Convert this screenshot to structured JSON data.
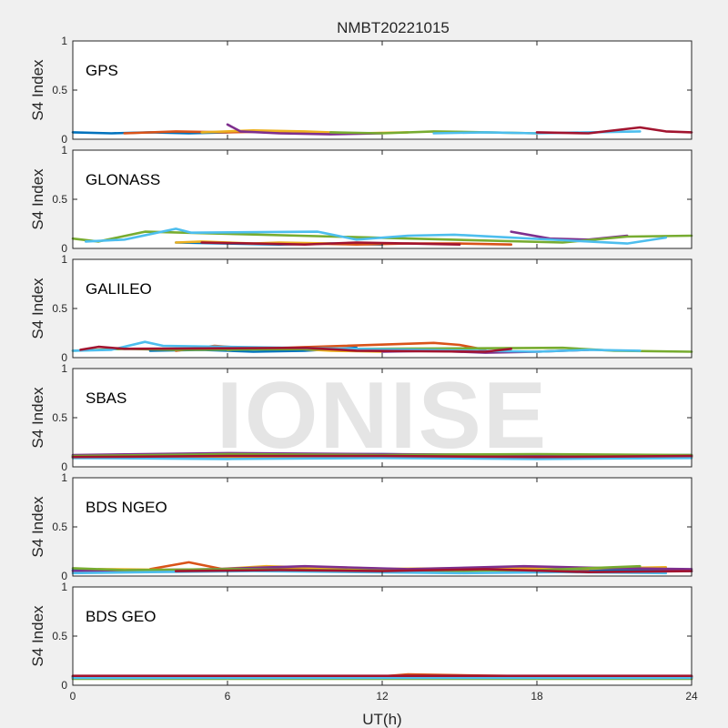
{
  "figure": {
    "title": "NMBT20221015",
    "watermark": "IONISE"
  },
  "chart_data": {
    "type": "line",
    "title": "NMBT20221015",
    "xlabel": "UT(h)",
    "xlim": [
      0,
      24
    ],
    "xticks": [
      "0",
      "6",
      "12",
      "18",
      "24"
    ],
    "ylim": [
      0,
      1
    ],
    "yticks": [
      "0",
      "0.5",
      "1"
    ],
    "series_colors": [
      "#0072BD",
      "#D95319",
      "#EDB120",
      "#7E2F8E",
      "#77AC30",
      "#4DBEEE",
      "#A2142F"
    ],
    "panels": [
      {
        "label": "GPS",
        "ylabel": "S4 Index",
        "series": [
          {
            "x": [
              0,
              1.5,
              3,
              4.5,
              6
            ],
            "y": [
              0.07,
              0.06,
              0.07,
              0.06,
              0.07
            ]
          },
          {
            "x": [
              2,
              4,
              6,
              8,
              10
            ],
            "y": [
              0.06,
              0.08,
              0.07,
              0.08,
              0.06
            ]
          },
          {
            "x": [
              5,
              7,
              9,
              11,
              13
            ],
            "y": [
              0.07,
              0.09,
              0.08,
              0.06,
              0.07
            ]
          },
          {
            "x": [
              6,
              6.5,
              8,
              10,
              12
            ],
            "y": [
              0.15,
              0.08,
              0.06,
              0.05,
              0.06
            ]
          },
          {
            "x": [
              10,
              12,
              14,
              16,
              18
            ],
            "y": [
              0.07,
              0.06,
              0.08,
              0.07,
              0.06
            ]
          },
          {
            "x": [
              14,
              16,
              18,
              20,
              22
            ],
            "y": [
              0.06,
              0.07,
              0.06,
              0.07,
              0.08
            ]
          },
          {
            "x": [
              18,
              20,
              22,
              23,
              24
            ],
            "y": [
              0.07,
              0.06,
              0.12,
              0.08,
              0.07
            ]
          }
        ]
      },
      {
        "label": "GLONASS",
        "ylabel": "S4 Index",
        "series": [
          {
            "x": [
              4,
              6,
              8,
              10,
              12
            ],
            "y": [
              0.06,
              0.05,
              0.04,
              0.05,
              0.04
            ]
          },
          {
            "x": [
              9,
              11,
              13,
              15,
              17
            ],
            "y": [
              0.05,
              0.04,
              0.05,
              0.05,
              0.04
            ]
          },
          {
            "x": [
              4,
              5,
              7,
              8,
              10
            ],
            "y": [
              0.06,
              0.07,
              0.05,
              0.06,
              0.05
            ]
          },
          {
            "x": [
              17,
              18.5,
              20,
              21.5
            ],
            "y": [
              0.17,
              0.1,
              0.09,
              0.13
            ]
          },
          {
            "x": [
              0,
              1,
              2.8,
              19,
              21.5,
              24
            ],
            "y": [
              0.1,
              0.07,
              0.17,
              0.06,
              0.12,
              0.13
            ]
          },
          {
            "x": [
              0.5,
              2,
              4,
              4.6,
              9.5,
              11,
              13,
              14.8,
              21.5,
              23
            ],
            "y": [
              0.07,
              0.09,
              0.2,
              0.16,
              0.17,
              0.09,
              0.13,
              0.14,
              0.05,
              0.11
            ]
          },
          {
            "x": [
              5,
              7,
              9,
              11,
              13,
              15
            ],
            "y": [
              0.06,
              0.05,
              0.04,
              0.06,
              0.05,
              0.04
            ]
          }
        ]
      },
      {
        "label": "GALILEO",
        "ylabel": "S4 Index",
        "series": [
          {
            "x": [
              3,
              5,
              7,
              9,
              11
            ],
            "y": [
              0.07,
              0.08,
              0.06,
              0.07,
              0.1
            ]
          },
          {
            "x": [
              4,
              5.5,
              7,
              14,
              15,
              16
            ],
            "y": [
              0.07,
              0.12,
              0.09,
              0.15,
              0.13,
              0.08
            ]
          },
          {
            "x": [
              6,
              8,
              10,
              12
            ],
            "y": [
              0.08,
              0.1,
              0.07,
              0.06
            ]
          },
          {
            "x": [
              12,
              14,
              16,
              18,
              20
            ],
            "y": [
              0.06,
              0.07,
              0.05,
              0.06,
              0.08
            ]
          },
          {
            "x": [
              0,
              2,
              4,
              19,
              21,
              24
            ],
            "y": [
              0.07,
              0.09,
              0.08,
              0.1,
              0.07,
              0.06
            ]
          },
          {
            "x": [
              0,
              1.5,
              2.8,
              3.5,
              18,
              20,
              22
            ],
            "y": [
              0.07,
              0.08,
              0.16,
              0.12,
              0.06,
              0.08,
              0.07
            ]
          },
          {
            "x": [
              0.3,
              1,
              2,
              9,
              11,
              16,
              17
            ],
            "y": [
              0.08,
              0.11,
              0.09,
              0.1,
              0.07,
              0.06,
              0.09
            ]
          }
        ]
      },
      {
        "label": "SBAS",
        "ylabel": "S4 Index",
        "series": [
          {
            "x": [
              0,
              6,
              12,
              18,
              24
            ],
            "y": [
              0.11,
              0.12,
              0.13,
              0.11,
              0.12
            ]
          },
          {
            "x": [
              0,
              6,
              12,
              18,
              24
            ],
            "y": [
              0.1,
              0.11,
              0.1,
              0.11,
              0.1
            ]
          },
          {
            "x": [
              0,
              6,
              12,
              18,
              24
            ],
            "y": [
              0.09,
              0.1,
              0.1,
              0.09,
              0.1
            ]
          },
          {
            "x": [
              0,
              6,
              12,
              18,
              24
            ],
            "y": [
              0.12,
              0.14,
              0.13,
              0.12,
              0.11
            ]
          },
          {
            "x": [
              0,
              6,
              12,
              18,
              24
            ],
            "y": [
              0.11,
              0.13,
              0.12,
              0.13,
              0.12
            ]
          },
          {
            "x": [
              0,
              6,
              12,
              18,
              24
            ],
            "y": [
              0.09,
              0.08,
              0.09,
              0.08,
              0.09
            ]
          },
          {
            "x": [
              0,
              6,
              12,
              18,
              24
            ],
            "y": [
              0.1,
              0.11,
              0.11,
              0.1,
              0.11
            ]
          }
        ]
      },
      {
        "label": "BDS NGEO",
        "ylabel": "S4 Index",
        "series": [
          {
            "x": [
              0,
              4,
              8,
              12,
              16,
              20,
              24
            ],
            "y": [
              0.06,
              0.05,
              0.07,
              0.05,
              0.08,
              0.06,
              0.05
            ]
          },
          {
            "x": [
              3,
              4.5,
              6,
              10,
              14,
              17,
              20
            ],
            "y": [
              0.07,
              0.14,
              0.06,
              0.09,
              0.06,
              0.08,
              0.07
            ]
          },
          {
            "x": [
              1,
              5,
              7.5,
              11,
              15,
              19,
              23
            ],
            "y": [
              0.07,
              0.06,
              0.1,
              0.07,
              0.08,
              0.07,
              0.09
            ]
          },
          {
            "x": [
              0,
              5.5,
              9,
              13,
              17.5,
              21,
              24
            ],
            "y": [
              0.05,
              0.07,
              0.1,
              0.07,
              0.1,
              0.08,
              0.07
            ]
          },
          {
            "x": [
              0,
              2,
              6,
              10,
              14,
              18,
              22
            ],
            "y": [
              0.08,
              0.06,
              0.07,
              0.06,
              0.05,
              0.06,
              0.1
            ]
          },
          {
            "x": [
              0,
              3,
              7,
              11,
              15,
              19,
              23
            ],
            "y": [
              0.03,
              0.04,
              0.05,
              0.04,
              0.03,
              0.04,
              0.03
            ]
          },
          {
            "x": [
              4,
              8,
              12,
              16,
              20,
              24
            ],
            "y": [
              0.05,
              0.06,
              0.05,
              0.07,
              0.04,
              0.05
            ]
          }
        ]
      },
      {
        "label": "BDS GEO",
        "ylabel": "S4 Index",
        "series": [
          {
            "x": [
              0,
              6,
              12,
              18,
              24
            ],
            "y": [
              0.08,
              0.08,
              0.08,
              0.08,
              0.08
            ]
          },
          {
            "x": [
              0,
              6,
              12,
              13,
              18,
              24
            ],
            "y": [
              0.09,
              0.09,
              0.09,
              0.11,
              0.09,
              0.09
            ]
          },
          {
            "x": [
              0,
              6,
              12,
              18,
              24
            ],
            "y": [
              0.07,
              0.07,
              0.07,
              0.07,
              0.07
            ]
          },
          {
            "x": [
              0,
              6,
              12,
              18,
              24
            ],
            "y": [
              0.085,
              0.085,
              0.085,
              0.085,
              0.085
            ]
          },
          {
            "x": [
              0,
              6,
              12,
              18,
              24
            ],
            "y": [
              0.065,
              0.065,
              0.065,
              0.065,
              0.065
            ]
          },
          {
            "x": [
              0,
              6,
              12,
              18,
              24
            ],
            "y": [
              0.075,
              0.075,
              0.075,
              0.075,
              0.075
            ]
          },
          {
            "x": [
              0,
              6,
              12,
              18,
              24
            ],
            "y": [
              0.095,
              0.095,
              0.095,
              0.095,
              0.095
            ]
          }
        ]
      }
    ]
  }
}
